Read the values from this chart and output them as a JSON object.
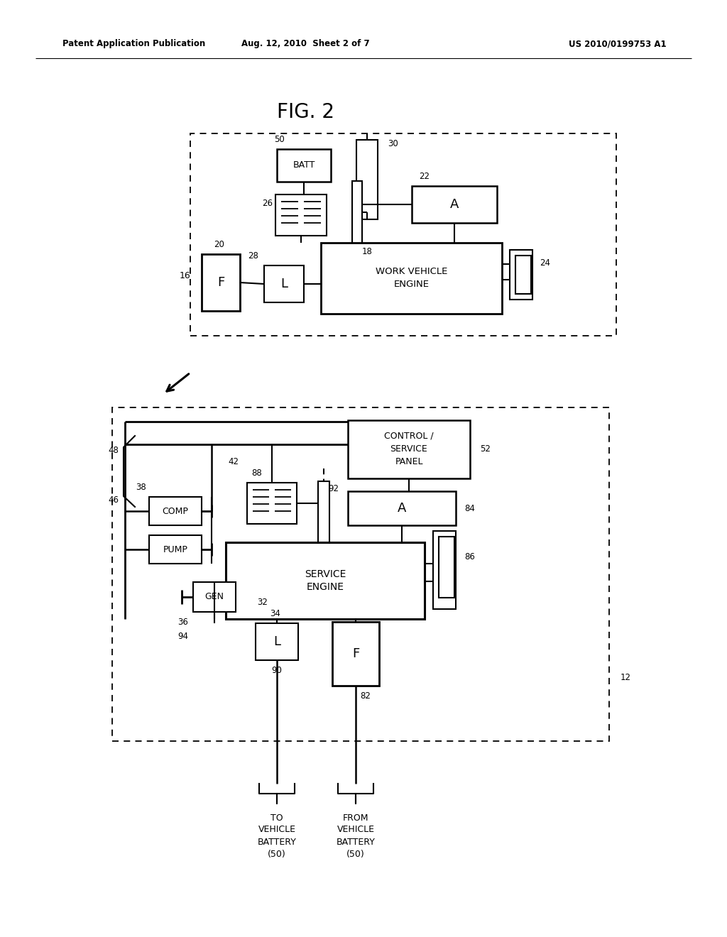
{
  "title": "FIG. 2",
  "header_left": "Patent Application Publication",
  "header_mid": "Aug. 12, 2010  Sheet 2 of 7",
  "header_right": "US 2010/0199753 A1",
  "bg_color": "#ffffff",
  "line_color": "#000000",
  "text_color": "#000000"
}
